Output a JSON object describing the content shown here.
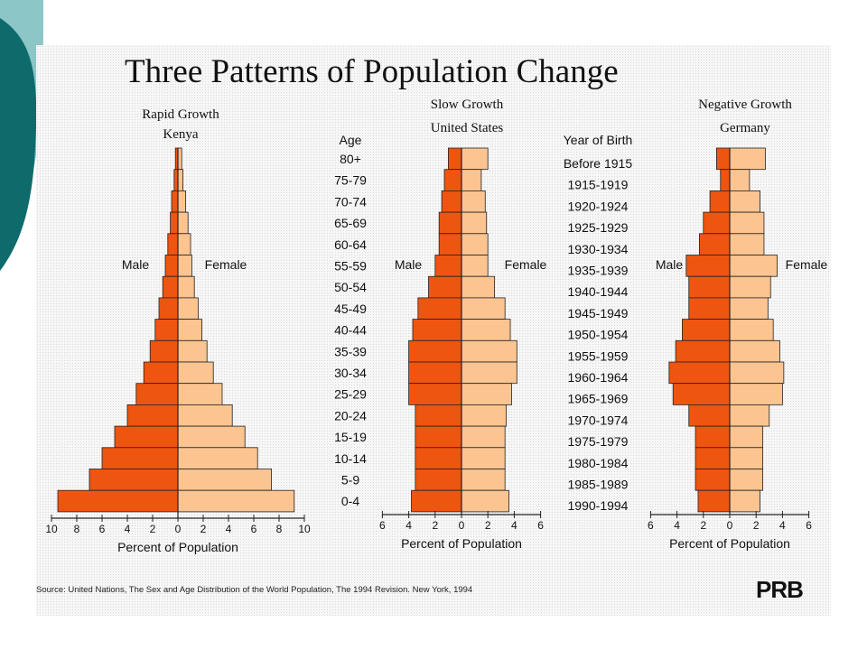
{
  "title": "Three Patterns of Population Change",
  "source": "Source: United Nations, The Sex and Age Distribution of the World Population, The 1994 Revision. New York, 1994",
  "logo_text": "PRB",
  "colors": {
    "male": "#ee5511",
    "female": "#fbc490",
    "outline": "#222222",
    "teal": "#0f6b6b",
    "light_teal": "#8cc6c6"
  },
  "chart_data": [
    {
      "type": "bar",
      "orientation": "horizontal-pyramid",
      "title": "Rapid Growth",
      "subtitle": "Kenya",
      "categories_label": "Age",
      "categories": [
        "80+",
        "75-79",
        "70-74",
        "65-69",
        "60-64",
        "55-59",
        "50-54",
        "45-49",
        "40-44",
        "35-39",
        "30-34",
        "25-29",
        "20-24",
        "15-19",
        "10-14",
        "5-9",
        "0-4"
      ],
      "series": [
        {
          "name": "Male",
          "values": [
            0.2,
            0.3,
            0.5,
            0.6,
            0.8,
            1.0,
            1.2,
            1.5,
            1.8,
            2.2,
            2.7,
            3.3,
            4.0,
            5.0,
            6.0,
            7.0,
            9.5
          ]
        },
        {
          "name": "Female",
          "values": [
            0.3,
            0.4,
            0.6,
            0.8,
            1.0,
            1.1,
            1.3,
            1.6,
            1.9,
            2.3,
            2.8,
            3.5,
            4.3,
            5.3,
            6.3,
            7.4,
            9.2
          ]
        }
      ],
      "xlabel": "Percent of Population",
      "xticks": [
        "10",
        "8",
        "6",
        "4",
        "2",
        "0",
        "2",
        "4",
        "6",
        "8",
        "10"
      ],
      "xlim": [
        -10,
        10
      ]
    },
    {
      "type": "bar",
      "orientation": "horizontal-pyramid",
      "title": "Slow Growth",
      "subtitle": "United States",
      "categories": [
        "80+",
        "75-79",
        "70-74",
        "65-69",
        "60-64",
        "55-59",
        "50-54",
        "45-49",
        "40-44",
        "35-39",
        "30-34",
        "25-29",
        "20-24",
        "15-19",
        "10-14",
        "5-9",
        "0-4"
      ],
      "series": [
        {
          "name": "Male",
          "values": [
            1.0,
            1.3,
            1.5,
            1.7,
            1.7,
            2.0,
            2.5,
            3.3,
            3.7,
            4.0,
            4.0,
            4.0,
            3.5,
            3.5,
            3.5,
            3.5,
            3.8
          ]
        },
        {
          "name": "Female",
          "values": [
            2.0,
            1.5,
            1.8,
            1.9,
            2.0,
            2.0,
            2.5,
            3.3,
            3.7,
            4.2,
            4.2,
            3.8,
            3.4,
            3.3,
            3.3,
            3.3,
            3.6
          ]
        }
      ],
      "xlabel": "Percent of Population",
      "xticks": [
        "6",
        "4",
        "2",
        "0",
        "2",
        "4",
        "6"
      ],
      "xlim": [
        -6,
        6
      ]
    },
    {
      "type": "bar",
      "orientation": "horizontal-pyramid",
      "title": "Negative Growth",
      "subtitle": "Germany",
      "categories_label": "Year of Birth",
      "categories": [
        "Before 1915",
        "1915-1919",
        "1920-1924",
        "1925-1929",
        "1930-1934",
        "1935-1939",
        "1940-1944",
        "1945-1949",
        "1950-1954",
        "1955-1959",
        "1960-1964",
        "1965-1969",
        "1970-1974",
        "1975-1979",
        "1980-1984",
        "1985-1989",
        "1990-1994"
      ],
      "series": [
        {
          "name": "Male",
          "values": [
            1.0,
            0.7,
            1.5,
            2.0,
            2.3,
            3.3,
            3.1,
            3.1,
            3.6,
            4.1,
            4.6,
            4.3,
            3.1,
            2.6,
            2.6,
            2.6,
            2.4
          ]
        },
        {
          "name": "Female",
          "values": [
            2.7,
            1.5,
            2.3,
            2.6,
            2.6,
            3.6,
            3.1,
            2.9,
            3.3,
            3.8,
            4.1,
            4.0,
            3.0,
            2.5,
            2.5,
            2.5,
            2.3
          ]
        }
      ],
      "xlabel": "Percent of Population",
      "xticks": [
        "6",
        "4",
        "2",
        "0",
        "2",
        "4",
        "6"
      ],
      "xlim": [
        -6,
        6
      ]
    }
  ]
}
